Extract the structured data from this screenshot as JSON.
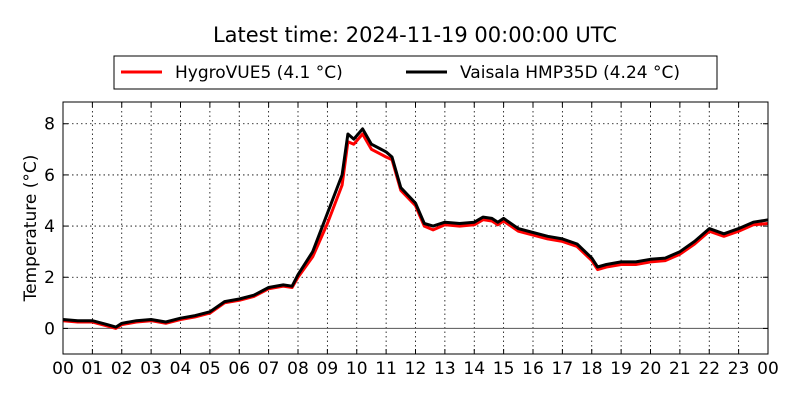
{
  "chart_data": {
    "type": "line",
    "title": "Latest time: 2024-11-19 00:00:00 UTC",
    "xlabel": "",
    "ylabel": "Temperature (°C)",
    "xlim": [
      0,
      24
    ],
    "ylim": [
      -1,
      8.85
    ],
    "grid": true,
    "legend_placement": "top-center, above plot",
    "x_tick_labels": [
      "00",
      "01",
      "02",
      "03",
      "04",
      "05",
      "06",
      "07",
      "08",
      "09",
      "10",
      "11",
      "12",
      "13",
      "14",
      "15",
      "16",
      "17",
      "18",
      "19",
      "20",
      "21",
      "22",
      "23",
      "00"
    ],
    "y_ticks": [
      0,
      2,
      4,
      6,
      8
    ],
    "x_hours": [
      0,
      0.5,
      1,
      1.5,
      1.8,
      2,
      2.5,
      3,
      3.5,
      4,
      4.5,
      5,
      5.5,
      6,
      6.5,
      7,
      7.5,
      7.8,
      8,
      8.5,
      9,
      9.5,
      9.7,
      9.9,
      10.2,
      10.5,
      11,
      11.2,
      11.5,
      12,
      12.3,
      12.6,
      13,
      13.5,
      14,
      14.3,
      14.6,
      14.8,
      15,
      15.5,
      16,
      16.5,
      17,
      17.5,
      18,
      18.2,
      18.5,
      19,
      19.5,
      20,
      20.5,
      21,
      21.5,
      22,
      22.5,
      23,
      23.5,
      24
    ],
    "series": [
      {
        "name": "HygroVUE5 (4.1 °C)",
        "color": "#ff0000",
        "values": [
          0.3,
          0.25,
          0.25,
          0.1,
          0.0,
          0.15,
          0.25,
          0.3,
          0.2,
          0.35,
          0.45,
          0.6,
          1.0,
          1.1,
          1.25,
          1.55,
          1.65,
          1.6,
          2.0,
          2.8,
          4.1,
          5.6,
          7.3,
          7.2,
          7.6,
          7.0,
          6.7,
          6.6,
          5.4,
          4.8,
          4.0,
          3.85,
          4.05,
          4.0,
          4.05,
          4.25,
          4.2,
          4.05,
          4.2,
          3.8,
          3.65,
          3.5,
          3.4,
          3.2,
          2.65,
          2.3,
          2.4,
          2.5,
          2.5,
          2.6,
          2.65,
          2.9,
          3.3,
          3.8,
          3.6,
          3.8,
          4.05,
          4.1
        ]
      },
      {
        "name": "Vaisala HMP35D (4.24 °C)",
        "color": "#000000",
        "values": [
          0.35,
          0.3,
          0.3,
          0.15,
          0.05,
          0.2,
          0.3,
          0.35,
          0.25,
          0.4,
          0.5,
          0.65,
          1.05,
          1.15,
          1.3,
          1.6,
          1.7,
          1.65,
          2.1,
          3.0,
          4.5,
          6.0,
          7.6,
          7.4,
          7.8,
          7.2,
          6.9,
          6.7,
          5.5,
          4.9,
          4.1,
          4.0,
          4.15,
          4.1,
          4.15,
          4.35,
          4.3,
          4.15,
          4.3,
          3.9,
          3.75,
          3.6,
          3.5,
          3.3,
          2.75,
          2.4,
          2.5,
          2.6,
          2.6,
          2.7,
          2.75,
          3.0,
          3.4,
          3.9,
          3.7,
          3.9,
          4.15,
          4.24
        ]
      }
    ]
  }
}
